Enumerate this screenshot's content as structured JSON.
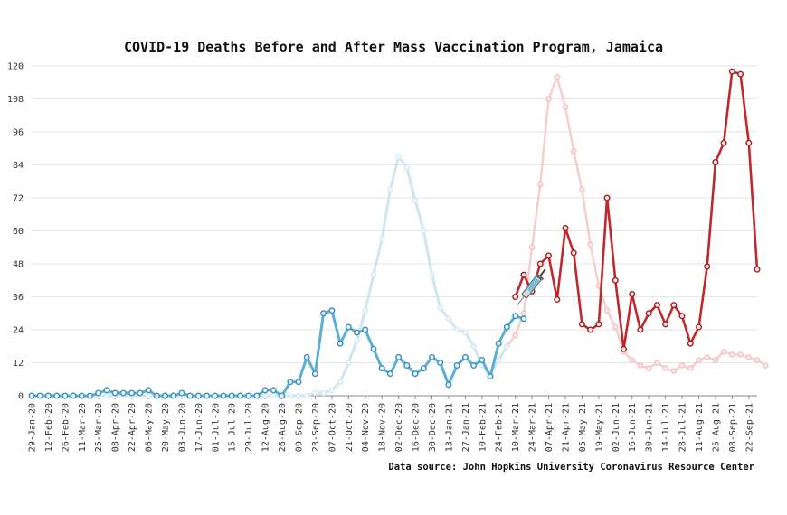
{
  "chart_data": {
    "type": "line",
    "title": "COVID-19 Deaths Before and After Mass Vaccination Program, Jamaica",
    "source": "Data source: John Hopkins University Coronavirus Resource Center",
    "xlabel": "",
    "ylabel": "",
    "ylim": [
      0,
      120
    ],
    "yticks": [
      0,
      12,
      24,
      36,
      48,
      60,
      72,
      84,
      96,
      108,
      120
    ],
    "grid": true,
    "x_tick_labels": [
      "29-Jan-20",
      "12-Feb-20",
      "26-Feb-20",
      "11-Mar-20",
      "25-Mar-20",
      "08-Apr-20",
      "22-Apr-20",
      "06-May-20",
      "20-May-20",
      "03-Jun-20",
      "17-Jun-20",
      "01-Jul-20",
      "15-Jul-20",
      "29-Jul-20",
      "12-Aug-20",
      "26-Aug-20",
      "09-Sep-20",
      "23-Sep-20",
      "07-Oct-20",
      "21-Oct-20",
      "04-Nov-20",
      "18-Nov-20",
      "02-Dec-20",
      "16-Dec-20",
      "30-Dec-20",
      "13-Jan-21",
      "27-Jan-21",
      "10-Feb-21",
      "24-Feb-21",
      "10-Mar-21",
      "24-Mar-21",
      "07-Apr-21",
      "21-Apr-21",
      "05-May-21",
      "19-May-21",
      "02-Jun-21",
      "16-Jun-21",
      "30-Jun-21",
      "14-Jul-21",
      "28-Jul-21",
      "11-Aug-21",
      "25-Aug-21",
      "08-Sep-21",
      "22-Sep-21"
    ],
    "series": [
      {
        "color": "#5aafd6",
        "values": [
          0,
          0,
          0,
          0,
          0,
          0,
          0,
          0,
          1,
          2,
          1,
          1,
          1,
          1,
          2,
          0,
          0,
          0,
          1,
          0,
          0,
          0,
          0,
          0,
          0,
          0,
          0,
          0,
          2,
          2,
          0,
          5,
          5,
          14,
          8,
          30,
          31,
          19,
          25,
          23,
          24,
          17,
          10,
          8,
          14,
          11,
          8,
          10,
          14,
          12,
          4,
          11,
          14,
          11,
          13,
          7,
          19,
          25,
          29,
          28
        ]
      },
      {
        "color": "#c0282d",
        "values": [
          36,
          44,
          38,
          48,
          51,
          35,
          61,
          52,
          26,
          24,
          26,
          72,
          42,
          17,
          37,
          24,
          30,
          33,
          26,
          33,
          29,
          19,
          25,
          47,
          85,
          92,
          118,
          117,
          92,
          46
        ]
      },
      {
        "color": "#cfe6f1",
        "values": [
          0,
          0,
          0,
          0,
          0,
          0,
          0,
          0,
          0,
          0,
          0,
          0,
          0,
          0,
          0,
          0,
          0,
          0,
          0,
          0,
          0,
          0,
          0,
          0,
          0,
          0,
          0,
          0,
          0,
          0,
          0,
          0,
          0,
          0,
          1,
          1,
          2,
          5,
          12,
          20,
          31,
          44,
          57,
          75,
          87,
          83,
          71,
          60,
          44,
          32,
          28,
          24,
          23,
          18,
          11,
          8,
          13,
          18,
          22,
          30,
          54,
          77,
          108,
          116,
          105,
          89,
          75,
          55,
          40,
          31,
          25,
          16,
          13,
          11,
          10,
          12,
          10,
          9,
          11,
          10,
          13,
          14,
          13,
          16,
          15,
          15,
          14,
          13,
          11
        ]
      },
      {
        "color": "#f5cfcf",
        "values": [
          0,
          0,
          0,
          0,
          0,
          0,
          0,
          0,
          0,
          0,
          0,
          0,
          0,
          0,
          0,
          0,
          0,
          0,
          0,
          0,
          0,
          0,
          0,
          0,
          0,
          0,
          0,
          0,
          0,
          0,
          0,
          0,
          0,
          0,
          1,
          1,
          2,
          5,
          12,
          20,
          31,
          44,
          57,
          75,
          87,
          83,
          71,
          60,
          44,
          32,
          28,
          24,
          23,
          18,
          11,
          8,
          13,
          18,
          22,
          30,
          54,
          77,
          108,
          116,
          105,
          89,
          75,
          55,
          40,
          31,
          25,
          16,
          13,
          11,
          10,
          12,
          10,
          9,
          11,
          10,
          13,
          14,
          13,
          16,
          15,
          15,
          14,
          13,
          11
        ]
      }
    ]
  },
  "icons": {
    "syringe": "syringe-icon"
  }
}
